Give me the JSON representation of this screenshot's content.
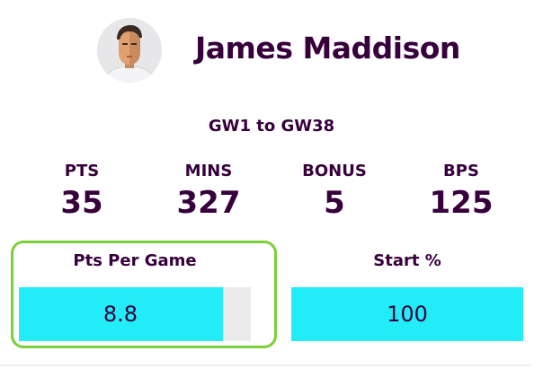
{
  "player": {
    "name": "James Maddison",
    "avatar_icon": "player-avatar-icon"
  },
  "range": "GW1 to GW38",
  "stats": [
    {
      "label": "PTS",
      "value": "35"
    },
    {
      "label": "MINS",
      "value": "327"
    },
    {
      "label": "BONUS",
      "value": "5"
    },
    {
      "label": "BPS",
      "value": "125"
    }
  ],
  "metrics": {
    "pts_per_game": {
      "title": "Pts Per Game",
      "value": "8.8",
      "fill_fraction": 0.88
    },
    "start_pct": {
      "title": "Start %",
      "value": "100",
      "fill_fraction": 1.0
    }
  },
  "colors": {
    "text": "#37003c",
    "bar_fill": "#21ecf8",
    "bar_track": "#ebebeb",
    "highlight": "#7ad03a"
  }
}
